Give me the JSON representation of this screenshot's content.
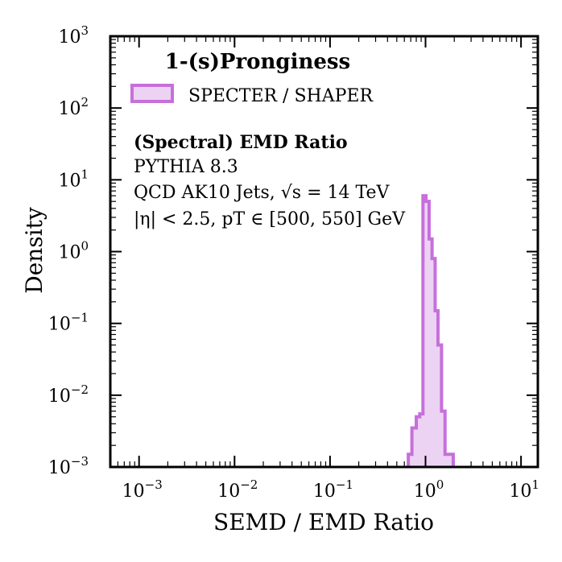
{
  "chart_data": {
    "type": "histogram",
    "scale": {
      "x": "log",
      "y": "log"
    },
    "xlim": [
      0.0005,
      15
    ],
    "ylim": [
      0.001,
      1000
    ],
    "xlabel": "SEMD / EMD Ratio",
    "ylabel": "Density",
    "x_ticks": [
      {
        "value": 0.001,
        "base": "10",
        "exp": "−3"
      },
      {
        "value": 0.01,
        "base": "10",
        "exp": "−2"
      },
      {
        "value": 0.1,
        "base": "10",
        "exp": "−1"
      },
      {
        "value": 1,
        "base": "10",
        "exp": "0"
      },
      {
        "value": 10,
        "base": "10",
        "exp": "1"
      }
    ],
    "y_ticks": [
      {
        "value": 0.001,
        "base": "10",
        "exp": "−3"
      },
      {
        "value": 0.01,
        "base": "10",
        "exp": "−2"
      },
      {
        "value": 0.1,
        "base": "10",
        "exp": "−1"
      },
      {
        "value": 1,
        "base": "10",
        "exp": "0"
      },
      {
        "value": 10,
        "base": "10",
        "exp": "1"
      },
      {
        "value": 100,
        "base": "10",
        "exp": "2"
      },
      {
        "value": 1000,
        "base": "10",
        "exp": "3"
      }
    ],
    "legend": {
      "title": "1-(s)Pronginess",
      "location": "top-left",
      "entries": [
        {
          "label": "SPECTER / SHAPER",
          "color": "#c76fdb"
        }
      ]
    },
    "annotations": [
      {
        "text": "(Spectral) EMD Ratio",
        "style": "bold"
      },
      {
        "text": "PYTHIA 8.3",
        "style": "normal"
      },
      {
        "text": "QCD AK10 Jets, √s = 14 TeV",
        "style": "normal"
      },
      {
        "text": "|η| < 2.5, pT ∈ [500, 550] GeV",
        "style": "normal"
      }
    ],
    "series": [
      {
        "name": "SPECTER / SHAPER",
        "color": "#c76fdb",
        "fill": "#ecd3f3",
        "bin_edges": [
          0.66,
          0.72,
          0.8,
          0.87,
          0.94,
          1.01,
          1.09,
          1.17,
          1.26,
          1.35,
          1.47,
          1.6,
          1.95
        ],
        "values": [
          0.0015,
          0.0035,
          0.005,
          0.0055,
          6.0,
          5.0,
          1.5,
          0.8,
          0.15,
          0.05,
          0.006,
          0.0015
        ]
      }
    ]
  }
}
